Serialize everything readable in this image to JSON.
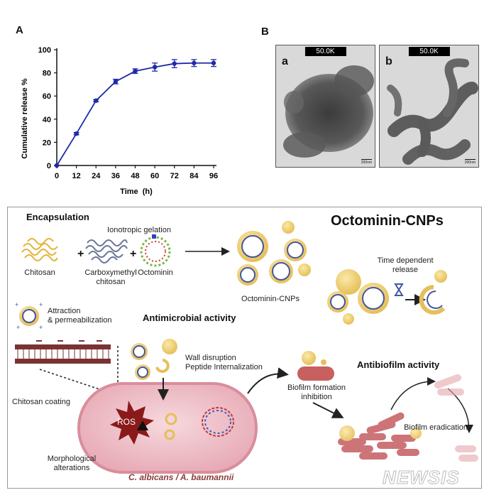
{
  "panel_a_label": "A",
  "panel_b_label": "B",
  "chart_data": {
    "type": "line",
    "title": "",
    "xlabel": "Time  (h)",
    "ylabel": "Cumulative release %",
    "x": [
      0,
      12,
      24,
      36,
      48,
      60,
      72,
      84,
      96
    ],
    "series": [
      {
        "values": [
          0,
          27.5,
          56,
          72.5,
          81.5,
          85,
          88,
          88.5,
          88.5
        ],
        "errors": [
          0,
          1,
          1,
          2,
          2,
          3.5,
          3.5,
          3,
          3
        ]
      }
    ],
    "xticks": [
      "0",
      "12",
      "24",
      "36",
      "48",
      "60",
      "72",
      "84",
      "96"
    ],
    "yticks": [
      "0",
      "20",
      "40",
      "60",
      "80",
      "100"
    ],
    "xlim": [
      0,
      96
    ],
    "ylim": [
      0,
      100
    ],
    "grid": false,
    "color": "#1d2aa8"
  },
  "tem": [
    {
      "letter": "a",
      "badge": "50.0K",
      "scale": "200nm"
    },
    {
      "letter": "b",
      "badge": "50.0K",
      "scale": "200nm"
    }
  ],
  "abstract": {
    "title": "Octominin-CNPs",
    "encapsulation": "Encapsulation",
    "ionotropic": "Ionotropic gelation",
    "chitosan": "Chitosan",
    "cm_chitosan_1": "Carboxymethyl",
    "cm_chitosan_2": "chitosan",
    "octominin": "Octominin",
    "octominin_cnps": "Octominin-CNPs",
    "time_release_1": "Time dependent",
    "time_release_2": "release",
    "attraction_1": "Attraction",
    "attraction_2": "& permeabilization",
    "antimicrobial": "Antimicrobial activity",
    "wall_1": "Wall disruption",
    "wall_2": "Peptide Internalization",
    "biofilm_1": "Biofilm formation",
    "biofilm_2": "inhibition",
    "antibiofilm": "Antibiofilm activity",
    "eradication": "Biofilm eradication",
    "chitosan_coating": "Chitosan coating",
    "ros": "ROS",
    "morph_1": "Morphological",
    "morph_2": "alterations",
    "species": "C. albicans / A. baumannii",
    "watermark": "NEWSIS"
  }
}
